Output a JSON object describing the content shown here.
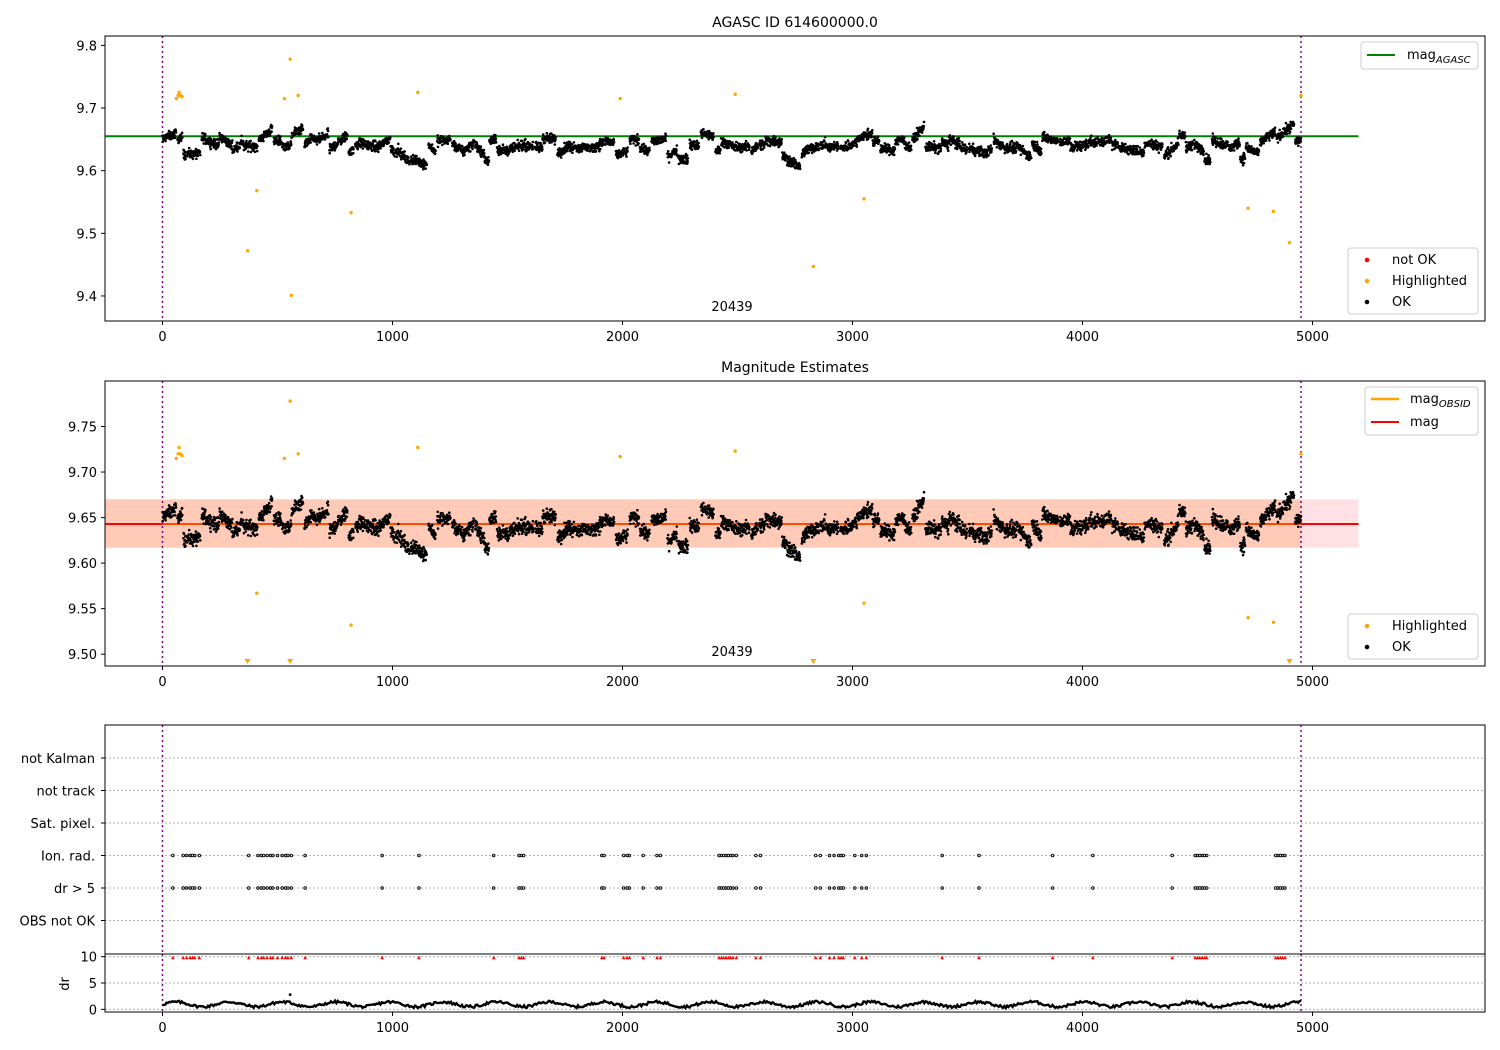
{
  "chart_data": [
    {
      "type": "scatter",
      "title": "AGASC ID 614600000.0",
      "xlim": [
        -250,
        5750
      ],
      "ylim": [
        9.36,
        9.815
      ],
      "xticks": [
        0,
        1000,
        2000,
        3000,
        4000,
        5000
      ],
      "yticks": [
        9.4,
        9.5,
        9.6,
        9.7,
        9.8
      ],
      "obsid_label": "20439",
      "obsid_label_x": 2460,
      "vlines": [
        0,
        4950
      ],
      "reference_line": {
        "name": "mag_AGASC",
        "y": 9.655,
        "x": [
          -250,
          5200
        ],
        "color": "#008000"
      },
      "legend_top": {
        "entries": [
          {
            "base": "mag",
            "sub": "AGASC",
            "color": "#008000"
          }
        ]
      },
      "legend_bottom": {
        "entries": [
          {
            "label": "not OK",
            "color": "#ff0000"
          },
          {
            "label": "Highlighted",
            "color": "#ffa500"
          },
          {
            "label": "OK",
            "color": "#000000"
          }
        ]
      },
      "highlighted_points": [
        [
          60,
          9.715
        ],
        [
          68,
          9.72
        ],
        [
          72,
          9.725
        ],
        [
          78,
          9.72
        ],
        [
          85,
          9.718
        ],
        [
          370,
          9.472
        ],
        [
          410,
          9.568
        ],
        [
          555,
          9.778
        ],
        [
          560,
          9.401
        ],
        [
          530,
          9.715
        ],
        [
          590,
          9.72
        ],
        [
          820,
          9.533
        ],
        [
          1110,
          9.725
        ],
        [
          1990,
          9.715
        ],
        [
          2490,
          9.722
        ],
        [
          2830,
          9.447
        ],
        [
          3050,
          9.555
        ],
        [
          4720,
          9.54
        ],
        [
          4830,
          9.535
        ],
        [
          4900,
          9.485
        ],
        [
          4950,
          9.72
        ]
      ]
    },
    {
      "type": "scatter",
      "title": "Magnitude Estimates",
      "xlim": [
        -250,
        5750
      ],
      "ylim": [
        9.487,
        9.8
      ],
      "xticks": [
        0,
        1000,
        2000,
        3000,
        4000,
        5000
      ],
      "yticks": [
        9.5,
        9.55,
        9.6,
        9.65,
        9.7,
        9.75
      ],
      "obsid_label": "20439",
      "obsid_label_x": 2460,
      "vlines": [
        0,
        4950
      ],
      "mean_line": {
        "name": "mag",
        "y": 9.643,
        "x": [
          -250,
          5200
        ],
        "color": "#ff0000"
      },
      "band": {
        "y": [
          9.617,
          9.67
        ],
        "x": [
          -250,
          5200
        ],
        "obsid_x": [
          -250,
          4950
        ]
      },
      "legend_top": {
        "entries": [
          {
            "base": "mag",
            "sub": "OBSID",
            "color": "#ffa500"
          },
          {
            "base": "mag",
            "sub": "",
            "color": "#ff0000"
          }
        ]
      },
      "legend_bottom": {
        "entries": [
          {
            "label": "Highlighted",
            "color": "#ffa500"
          },
          {
            "label": "OK",
            "color": "#000000"
          }
        ]
      },
      "highlighted_points": [
        [
          60,
          9.715
        ],
        [
          68,
          9.72
        ],
        [
          72,
          9.727
        ],
        [
          78,
          9.72
        ],
        [
          85,
          9.718
        ],
        [
          410,
          9.567
        ],
        [
          555,
          9.778
        ],
        [
          530,
          9.715
        ],
        [
          590,
          9.72
        ],
        [
          820,
          9.532
        ],
        [
          1110,
          9.727
        ],
        [
          1990,
          9.717
        ],
        [
          2490,
          9.723
        ],
        [
          3050,
          9.556
        ],
        [
          4720,
          9.54
        ],
        [
          4830,
          9.535
        ],
        [
          4950,
          9.72
        ]
      ],
      "below_axis_markers": [
        370,
        555,
        2830,
        4900
      ]
    },
    {
      "type": "scatter",
      "xlim": [
        -250,
        5750
      ],
      "xticks": [
        0,
        1000,
        2000,
        3000,
        4000,
        5000
      ],
      "vlines": [
        0,
        4950
      ],
      "flag_rows": [
        "not Kalman",
        "not track",
        "Sat. pixel.",
        "Ion. rad.",
        "dr > 5",
        "OBS not OK"
      ],
      "flagged_times": [
        45,
        90,
        105,
        120,
        130,
        140,
        160,
        375,
        415,
        430,
        440,
        455,
        470,
        480,
        500,
        520,
        535,
        545,
        560,
        620,
        955,
        1115,
        1440,
        1550,
        1560,
        1570,
        1910,
        1920,
        2005,
        2020,
        2030,
        2090,
        2150,
        2165,
        2420,
        2430,
        2440,
        2450,
        2460,
        2470,
        2480,
        2495,
        2580,
        2600,
        2840,
        2860,
        2900,
        2920,
        2940,
        2950,
        2960,
        3010,
        3040,
        3060,
        3390,
        3550,
        3870,
        4045,
        4390,
        4490,
        4500,
        4510,
        4520,
        4530,
        4540,
        4840,
        4850,
        4860,
        4870,
        4880
      ],
      "dr_panel": {
        "ylabel": "dr",
        "yticks": [
          0,
          5,
          10
        ],
        "ylim": [
          -0.5,
          10.5
        ],
        "flag_marker_y": 9.8,
        "spike": [
          555,
          2.8
        ]
      }
    }
  ]
}
